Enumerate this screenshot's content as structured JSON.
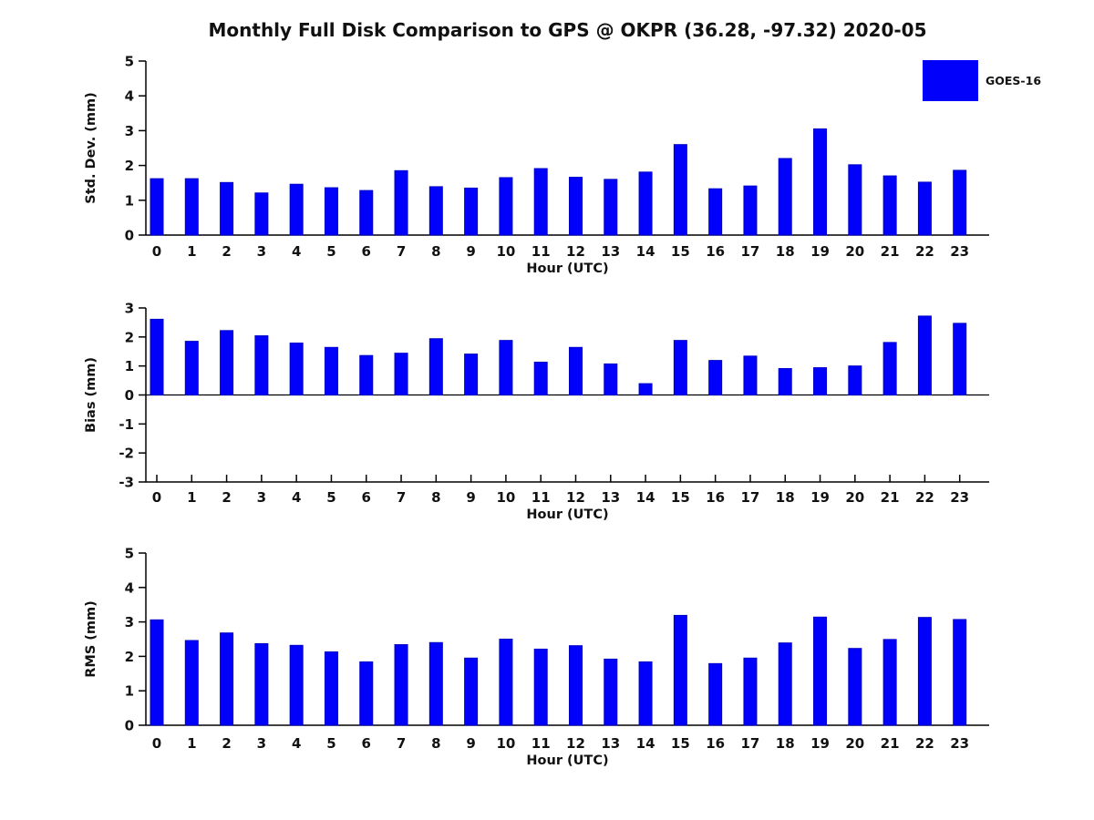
{
  "title": "Monthly Full Disk Comparison to GPS @ OKPR (36.28, -97.32) 2020-05",
  "legend": {
    "label": "GOES-16",
    "color": "#0101fb",
    "position": "top-right"
  },
  "colors": {
    "bar": "#0101fb",
    "bar_edge": "#0000c8",
    "axis": "#000000",
    "text": "#111111",
    "background": "#ffffff"
  },
  "chart_data": [
    {
      "type": "bar",
      "title": "",
      "xlabel": "Hour (UTC)",
      "ylabel": "Std. Dev. (mm)",
      "ylim": [
        0,
        5
      ],
      "yticks": [
        0,
        1,
        2,
        3,
        4,
        5
      ],
      "grid": false,
      "categories": [
        "0",
        "1",
        "2",
        "3",
        "4",
        "5",
        "6",
        "7",
        "8",
        "9",
        "10",
        "11",
        "12",
        "13",
        "14",
        "15",
        "16",
        "17",
        "18",
        "19",
        "20",
        "21",
        "22",
        "23"
      ],
      "series": [
        {
          "name": "GOES-16",
          "values": [
            1.62,
            1.62,
            1.51,
            1.21,
            1.46,
            1.36,
            1.28,
            1.85,
            1.39,
            1.35,
            1.65,
            1.91,
            1.66,
            1.6,
            1.81,
            2.6,
            1.33,
            1.41,
            2.2,
            3.05,
            2.02,
            1.7,
            1.52,
            1.86
          ]
        }
      ]
    },
    {
      "type": "bar",
      "title": "",
      "xlabel": "Hour (UTC)",
      "ylabel": "Bias (mm)",
      "ylim": [
        -3,
        3
      ],
      "yticks": [
        -3,
        -2,
        -1,
        0,
        1,
        2,
        3
      ],
      "grid": false,
      "categories": [
        "0",
        "1",
        "2",
        "3",
        "4",
        "5",
        "6",
        "7",
        "8",
        "9",
        "10",
        "11",
        "12",
        "13",
        "14",
        "15",
        "16",
        "17",
        "18",
        "19",
        "20",
        "21",
        "22",
        "23"
      ],
      "series": [
        {
          "name": "GOES-16",
          "values": [
            2.61,
            1.85,
            2.22,
            2.04,
            1.79,
            1.64,
            1.36,
            1.44,
            1.94,
            1.41,
            1.88,
            1.13,
            1.64,
            1.07,
            0.39,
            1.88,
            1.19,
            1.34,
            0.91,
            0.94,
            1.0,
            1.81,
            2.72,
            2.47
          ]
        }
      ]
    },
    {
      "type": "bar",
      "title": "",
      "xlabel": "Hour (UTC)",
      "ylabel": "RMS (mm)",
      "ylim": [
        0,
        5
      ],
      "yticks": [
        0,
        1,
        2,
        3,
        4,
        5
      ],
      "grid": false,
      "categories": [
        "0",
        "1",
        "2",
        "3",
        "4",
        "5",
        "6",
        "7",
        "8",
        "9",
        "10",
        "11",
        "12",
        "13",
        "14",
        "15",
        "16",
        "17",
        "18",
        "19",
        "20",
        "21",
        "22",
        "23"
      ],
      "series": [
        {
          "name": "GOES-16",
          "values": [
            3.06,
            2.46,
            2.68,
            2.37,
            2.32,
            2.13,
            1.84,
            2.34,
            2.4,
            1.95,
            2.5,
            2.21,
            2.31,
            1.92,
            1.84,
            3.19,
            1.79,
            1.95,
            2.39,
            3.14,
            2.23,
            2.49,
            3.13,
            3.07
          ]
        }
      ]
    }
  ]
}
